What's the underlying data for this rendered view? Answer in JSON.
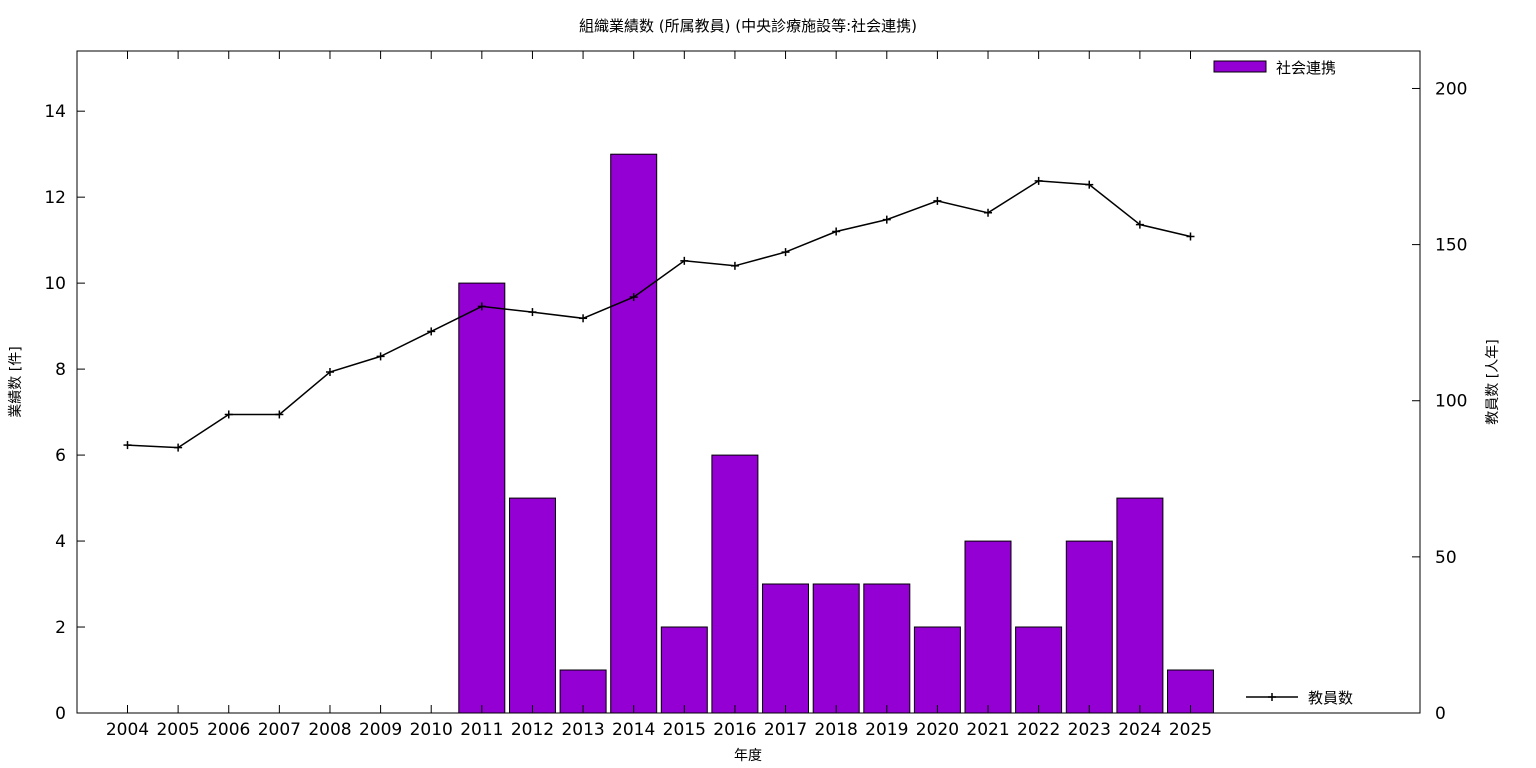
{
  "chart_data": {
    "type": "bar",
    "title": "組織業績数 (所属教員) (中央診療施設等:社会連携)",
    "xlabel": "年度",
    "ylabel_left": "業績数 [件]",
    "ylabel_right": "教員数 [人年]",
    "categories": [
      "2004",
      "2005",
      "2006",
      "2007",
      "2008",
      "2009",
      "2010",
      "2011",
      "2012",
      "2013",
      "2014",
      "2015",
      "2016",
      "2017",
      "2018",
      "2019",
      "2020",
      "2021",
      "2022",
      "2023",
      "2024",
      "2025"
    ],
    "ylim_left": [
      0,
      15.4
    ],
    "ylim_right": [
      0,
      212
    ],
    "yticks_left": [
      "0",
      "2",
      "4",
      "6",
      "8",
      "10",
      "12",
      "14"
    ],
    "yticks_right": [
      "0",
      "50",
      "100",
      "150",
      "200"
    ],
    "grid": false,
    "series": [
      {
        "name": "社会連携",
        "type": "bar",
        "axis": "left",
        "color": "#9400d3",
        "values": [
          0,
          0,
          0,
          0,
          0,
          0,
          0,
          10,
          5,
          1,
          13,
          2,
          6,
          3,
          3,
          3,
          2,
          4,
          2,
          4,
          5,
          1
        ]
      },
      {
        "name": "教員数",
        "type": "line",
        "axis": "right",
        "color": "#000000",
        "marker": "plus",
        "values": [
          85.8,
          85.0,
          95.6,
          95.6,
          109.2,
          114.2,
          122.2,
          130.2,
          128.4,
          126.4,
          133.2,
          144.8,
          143.2,
          147.6,
          154.2,
          158.0,
          164.0,
          160.2,
          170.4,
          169.2,
          156.4,
          152.6
        ]
      }
    ],
    "legend": [
      {
        "label": "社会連携",
        "placement": "top-right"
      },
      {
        "label": "教員数",
        "placement": "bottom-right"
      }
    ]
  }
}
